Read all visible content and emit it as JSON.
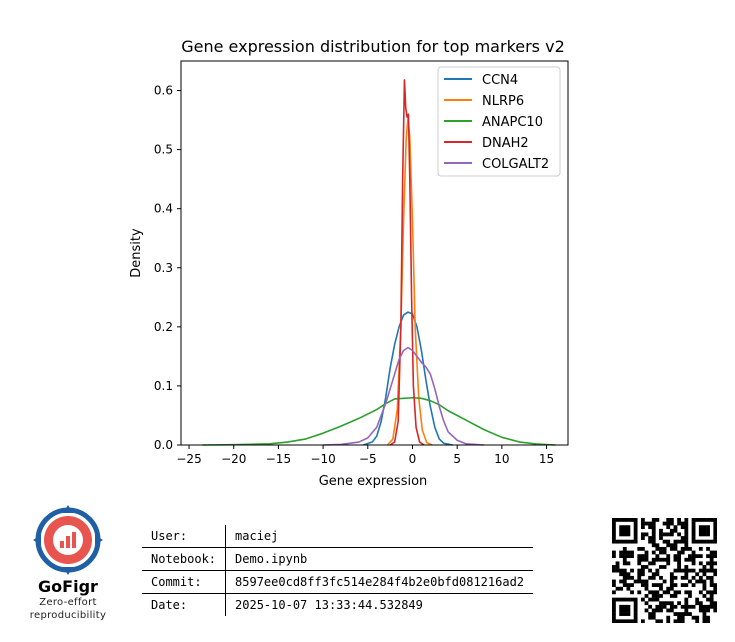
{
  "chart_data": {
    "type": "line",
    "title": "Gene expression distribution for top markers v2",
    "xlabel": "Gene expression",
    "ylabel": "Density",
    "xlim": [
      -25.9,
      17.4
    ],
    "ylim": [
      0,
      0.65
    ],
    "xticks": [
      -25,
      -20,
      -15,
      -10,
      -5,
      0,
      5,
      10,
      15
    ],
    "xtick_labels": [
      "−25",
      "−20",
      "−15",
      "−10",
      "−5",
      "0",
      "5",
      "10",
      "15"
    ],
    "yticks": [
      0.0,
      0.1,
      0.2,
      0.3,
      0.4,
      0.5,
      0.6
    ],
    "ytick_labels": [
      "0.0",
      "0.1",
      "0.2",
      "0.3",
      "0.4",
      "0.5",
      "0.6"
    ],
    "grid": false,
    "legend_position": "top-right",
    "series": [
      {
        "name": "CCN4",
        "color": "#1f77b4",
        "points": [
          [
            -5.5,
            0.0
          ],
          [
            -4.5,
            0.005
          ],
          [
            -4,
            0.015
          ],
          [
            -3.5,
            0.04
          ],
          [
            -3,
            0.08
          ],
          [
            -2.5,
            0.13
          ],
          [
            -2,
            0.17
          ],
          [
            -1.5,
            0.2
          ],
          [
            -1,
            0.22
          ],
          [
            -0.5,
            0.225
          ],
          [
            0,
            0.222
          ],
          [
            0.5,
            0.2
          ],
          [
            1,
            0.16
          ],
          [
            1.5,
            0.11
          ],
          [
            2,
            0.065
          ],
          [
            2.5,
            0.03
          ],
          [
            3,
            0.01
          ],
          [
            3.5,
            0.003
          ],
          [
            4.5,
            0.0
          ]
        ]
      },
      {
        "name": "NLRP6",
        "color": "#ff7f0e",
        "points": [
          [
            -2.8,
            0.0
          ],
          [
            -2.2,
            0.01
          ],
          [
            -1.7,
            0.06
          ],
          [
            -1.3,
            0.2
          ],
          [
            -1,
            0.38
          ],
          [
            -0.7,
            0.52
          ],
          [
            -0.5,
            0.553
          ],
          [
            -0.3,
            0.52
          ],
          [
            0,
            0.38
          ],
          [
            0.3,
            0.2
          ],
          [
            0.7,
            0.08
          ],
          [
            1.1,
            0.025
          ],
          [
            1.6,
            0.004
          ],
          [
            2.2,
            0.0
          ]
        ]
      },
      {
        "name": "ANAPC10",
        "color": "#2ca02c",
        "points": [
          [
            -23.5,
            0.0
          ],
          [
            -20,
            0.0005
          ],
          [
            -16,
            0.002
          ],
          [
            -14,
            0.005
          ],
          [
            -12,
            0.01
          ],
          [
            -10,
            0.02
          ],
          [
            -8,
            0.032
          ],
          [
            -6,
            0.045
          ],
          [
            -4,
            0.06
          ],
          [
            -3,
            0.07
          ],
          [
            -2,
            0.078
          ],
          [
            0,
            0.08
          ],
          [
            1,
            0.079
          ],
          [
            2,
            0.075
          ],
          [
            3,
            0.068
          ],
          [
            4,
            0.058
          ],
          [
            6,
            0.042
          ],
          [
            8,
            0.026
          ],
          [
            10,
            0.013
          ],
          [
            12,
            0.005
          ],
          [
            14,
            0.0015
          ],
          [
            16,
            0.0
          ]
        ]
      },
      {
        "name": "DNAH2",
        "color": "#d62728",
        "points": [
          [
            -2.5,
            0.0
          ],
          [
            -2,
            0.005
          ],
          [
            -1.6,
            0.04
          ],
          [
            -1.3,
            0.2
          ],
          [
            -1.1,
            0.45
          ],
          [
            -0.9,
            0.618
          ],
          [
            -0.75,
            0.57
          ],
          [
            -0.6,
            0.555
          ],
          [
            -0.45,
            0.56
          ],
          [
            -0.3,
            0.45
          ],
          [
            -0.1,
            0.25
          ],
          [
            0.1,
            0.1
          ],
          [
            0.4,
            0.03
          ],
          [
            0.8,
            0.005
          ],
          [
            1.3,
            0.0
          ]
        ]
      },
      {
        "name": "COLGALT2",
        "color": "#9467bd",
        "points": [
          [
            -10,
            0.0
          ],
          [
            -8,
            0.001
          ],
          [
            -6,
            0.005
          ],
          [
            -5,
            0.012
          ],
          [
            -4,
            0.03
          ],
          [
            -3,
            0.07
          ],
          [
            -2,
            0.12
          ],
          [
            -1.5,
            0.145
          ],
          [
            -1,
            0.16
          ],
          [
            -0.5,
            0.165
          ],
          [
            0,
            0.16
          ],
          [
            0.5,
            0.15
          ],
          [
            1,
            0.14
          ],
          [
            1.5,
            0.132
          ],
          [
            2,
            0.12
          ],
          [
            2.5,
            0.095
          ],
          [
            3,
            0.065
          ],
          [
            3.5,
            0.04
          ],
          [
            4,
            0.022
          ],
          [
            5,
            0.008
          ],
          [
            6,
            0.002
          ],
          [
            8,
            0.0
          ]
        ]
      }
    ]
  },
  "footer": {
    "brand": "GoFigr",
    "tagline_line1": "Zero-effort",
    "tagline_line2": "reproducibility",
    "rows": [
      {
        "key": "User:",
        "value": "maciej"
      },
      {
        "key": "Notebook:",
        "value": "Demo.ipynb"
      },
      {
        "key": "Commit:",
        "value": "8597ee0cd8ff3fc514e284f4b2e0bfd081216ad2"
      },
      {
        "key": "Date:",
        "value": "2025-10-07 13:33:44.532849"
      }
    ],
    "accent_color": "#e8544e",
    "logo_ring_color": "#1f5fa6",
    "qr_icon": "qr-code-icon"
  }
}
